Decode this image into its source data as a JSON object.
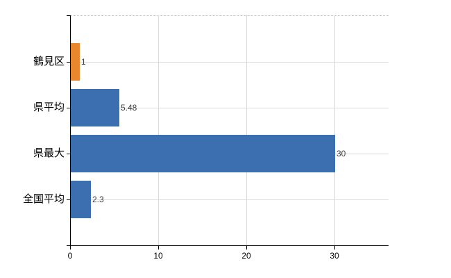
{
  "chart_data": {
    "type": "bar",
    "orientation": "horizontal",
    "title": "",
    "xlabel": "",
    "ylabel": "",
    "categories": [
      "鶴見区",
      "県平均",
      "県最大",
      "全国平均"
    ],
    "values": [
      1,
      5.48,
      30,
      2.3
    ],
    "value_labels": [
      "1",
      "5.48",
      "30",
      "2.3"
    ],
    "bar_colors": [
      "#E8872E",
      "#3C6FAF",
      "#3C6FAF",
      "#3C6FAF"
    ],
    "x_tick_labels": [
      "0",
      "10",
      "20",
      "30"
    ],
    "x_tick_values": [
      0,
      10,
      20,
      30
    ],
    "xlim": [
      0,
      36.1
    ],
    "grid": "on",
    "legend": "none",
    "colors": {
      "background": "#FFFFFF",
      "axis": "#000000",
      "gridline_vertical": "#D9D9D9",
      "gridline_horizontal": "#D6DCD6",
      "top_border_dashed": "#C8C8C8",
      "value_label": "#3F3F3F",
      "tick_label": "#000000",
      "category_label": "#000000",
      "bar_blue": "#3C6FAF",
      "bar_orange": "#E8872E"
    }
  }
}
